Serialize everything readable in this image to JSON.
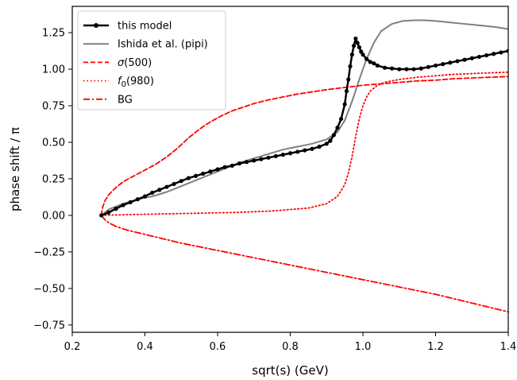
{
  "chart_data": {
    "type": "line",
    "xlabel": "sqrt(s) (GeV)",
    "ylabel": "phase shift / π",
    "xlim": [
      0.2,
      1.4
    ],
    "ylim": [
      -0.8,
      1.43
    ],
    "xticks": [
      0.2,
      0.4,
      0.6,
      0.8,
      1.0,
      1.2,
      1.4
    ],
    "xtick_labels": [
      "0.2",
      "0.4",
      "0.6",
      "0.8",
      "1.0",
      "1.2",
      "1.4"
    ],
    "yticks": [
      -0.75,
      -0.5,
      -0.25,
      0.0,
      0.25,
      0.5,
      0.75,
      1.0,
      1.25
    ],
    "ytick_labels": [
      "−0.75",
      "−0.50",
      "−0.25",
      "0.00",
      "0.25",
      "0.50",
      "0.75",
      "1.00",
      "1.25"
    ],
    "grid": false,
    "legend_position": "top-left",
    "series": [
      {
        "name": "this model",
        "color": "#000000",
        "style": "solid-markers",
        "x": [
          0.28,
          0.3,
          0.32,
          0.34,
          0.36,
          0.38,
          0.4,
          0.42,
          0.44,
          0.46,
          0.48,
          0.5,
          0.52,
          0.54,
          0.56,
          0.58,
          0.6,
          0.62,
          0.64,
          0.66,
          0.68,
          0.7,
          0.72,
          0.74,
          0.76,
          0.78,
          0.8,
          0.82,
          0.84,
          0.86,
          0.88,
          0.9,
          0.91,
          0.92,
          0.93,
          0.94,
          0.95,
          0.955,
          0.96,
          0.965,
          0.97,
          0.975,
          0.98,
          0.985,
          0.99,
          0.995,
          1.0,
          1.01,
          1.02,
          1.03,
          1.04,
          1.06,
          1.08,
          1.1,
          1.12,
          1.14,
          1.16,
          1.18,
          1.2,
          1.22,
          1.24,
          1.26,
          1.28,
          1.3,
          1.32,
          1.34,
          1.36,
          1.38,
          1.4
        ],
        "y": [
          0.0,
          0.02,
          0.045,
          0.07,
          0.09,
          0.11,
          0.13,
          0.155,
          0.175,
          0.195,
          0.215,
          0.235,
          0.255,
          0.27,
          0.285,
          0.3,
          0.315,
          0.33,
          0.34,
          0.355,
          0.365,
          0.375,
          0.385,
          0.395,
          0.405,
          0.415,
          0.425,
          0.435,
          0.445,
          0.455,
          0.47,
          0.49,
          0.51,
          0.55,
          0.6,
          0.66,
          0.76,
          0.85,
          0.93,
          1.02,
          1.1,
          1.16,
          1.21,
          1.18,
          1.15,
          1.12,
          1.1,
          1.07,
          1.05,
          1.04,
          1.025,
          1.01,
          1.005,
          1.0,
          1.0,
          1.0,
          1.005,
          1.015,
          1.025,
          1.035,
          1.045,
          1.055,
          1.065,
          1.075,
          1.085,
          1.095,
          1.105,
          1.115,
          1.125
        ]
      },
      {
        "name": "Ishida et al. (pipi)",
        "color": "#808080",
        "style": "solid",
        "x": [
          0.28,
          0.3,
          0.34,
          0.38,
          0.42,
          0.46,
          0.5,
          0.54,
          0.58,
          0.62,
          0.66,
          0.7,
          0.74,
          0.78,
          0.82,
          0.86,
          0.9,
          0.93,
          0.95,
          0.97,
          0.99,
          1.01,
          1.03,
          1.05,
          1.08,
          1.11,
          1.14,
          1.17,
          1.2,
          1.24,
          1.28,
          1.32,
          1.36,
          1.4
        ],
        "y": [
          0.0,
          0.04,
          0.08,
          0.11,
          0.13,
          0.16,
          0.2,
          0.24,
          0.28,
          0.32,
          0.36,
          0.39,
          0.42,
          0.45,
          0.47,
          0.49,
          0.52,
          0.57,
          0.65,
          0.78,
          0.93,
          1.07,
          1.18,
          1.26,
          1.31,
          1.33,
          1.335,
          1.335,
          1.33,
          1.32,
          1.31,
          1.3,
          1.29,
          1.275
        ]
      },
      {
        "name": "σ(500)",
        "color": "#ff0000",
        "style": "dashed",
        "x": [
          0.28,
          0.283,
          0.29,
          0.3,
          0.32,
          0.34,
          0.37,
          0.4,
          0.43,
          0.46,
          0.49,
          0.52,
          0.55,
          0.58,
          0.61,
          0.64,
          0.67,
          0.7,
          0.74,
          0.78,
          0.82,
          0.86,
          0.9,
          0.95,
          1.0,
          1.05,
          1.1,
          1.15,
          1.2,
          1.25,
          1.3,
          1.35,
          1.4
        ],
        "y": [
          0.0,
          0.05,
          0.1,
          0.14,
          0.19,
          0.23,
          0.27,
          0.31,
          0.35,
          0.4,
          0.46,
          0.53,
          0.59,
          0.64,
          0.68,
          0.715,
          0.74,
          0.765,
          0.79,
          0.81,
          0.83,
          0.845,
          0.86,
          0.875,
          0.89,
          0.9,
          0.91,
          0.92,
          0.925,
          0.935,
          0.94,
          0.945,
          0.95
        ]
      },
      {
        "name": "f_0(980)",
        "color": "#ff0000",
        "style": "dotted",
        "x": [
          0.28,
          0.35,
          0.45,
          0.55,
          0.65,
          0.75,
          0.85,
          0.9,
          0.93,
          0.95,
          0.96,
          0.97,
          0.98,
          0.99,
          1.0,
          1.01,
          1.02,
          1.04,
          1.06,
          1.1,
          1.15,
          1.2,
          1.25,
          1.3,
          1.35,
          1.4
        ],
        "y": [
          0.0,
          0.005,
          0.01,
          0.015,
          0.02,
          0.03,
          0.05,
          0.08,
          0.13,
          0.21,
          0.29,
          0.4,
          0.54,
          0.66,
          0.75,
          0.81,
          0.85,
          0.89,
          0.91,
          0.93,
          0.945,
          0.955,
          0.965,
          0.97,
          0.975,
          0.98
        ]
      },
      {
        "name": "BG",
        "color": "#ff0000",
        "style": "dashdot",
        "x": [
          0.28,
          0.29,
          0.3,
          0.32,
          0.35,
          0.4,
          0.5,
          0.6,
          0.7,
          0.8,
          0.9,
          1.0,
          1.1,
          1.2,
          1.3,
          1.4
        ],
        "y": [
          0.0,
          -0.03,
          -0.05,
          -0.075,
          -0.1,
          -0.13,
          -0.19,
          -0.24,
          -0.29,
          -0.34,
          -0.39,
          -0.44,
          -0.49,
          -0.54,
          -0.6,
          -0.66
        ]
      }
    ]
  }
}
